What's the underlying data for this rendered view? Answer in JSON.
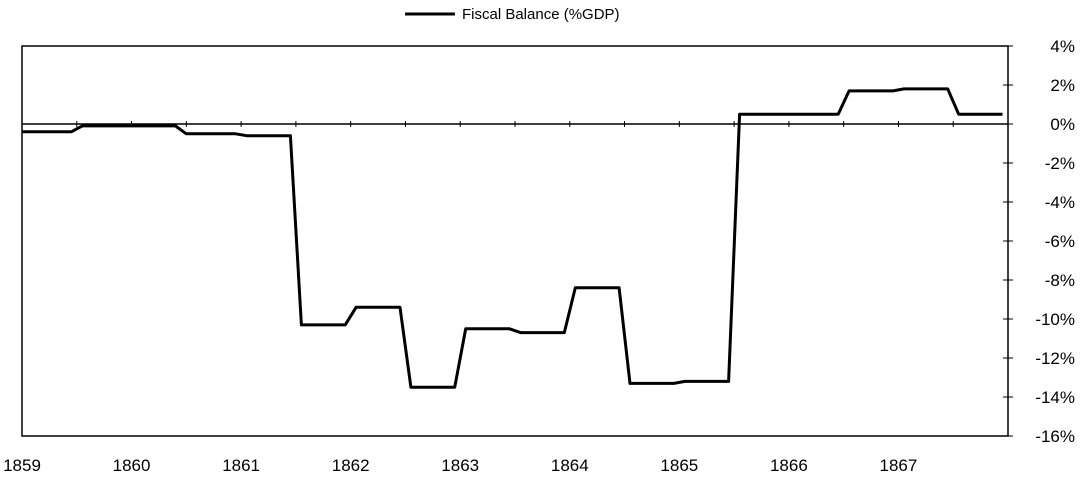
{
  "chart_data": {
    "type": "line",
    "title": "",
    "xlabel": "",
    "ylabel": "",
    "legend": {
      "position": "top-center",
      "entries": [
        "Fiscal Balance (%GDP)"
      ]
    },
    "grid": false,
    "xlim": [
      1859,
      1868
    ],
    "ylim": [
      -16,
      4
    ],
    "x_ticks": [
      1859,
      1860,
      1861,
      1862,
      1863,
      1864,
      1865,
      1866,
      1867
    ],
    "x_tick_labels": [
      "1859",
      "1860",
      "1861",
      "1862",
      "1863",
      "1864",
      "1865",
      "1866",
      "1867"
    ],
    "y_ticks": [
      4,
      2,
      0,
      -2,
      -4,
      -6,
      -8,
      -10,
      -12,
      -14,
      -16
    ],
    "y_tick_labels": [
      "4%",
      "2%",
      "0%",
      "-2%",
      "-4%",
      "-6%",
      "-8%",
      "-10%",
      "-12%",
      "-14%",
      "-16%"
    ],
    "y_axis_side": "right",
    "series": [
      {
        "name": "Fiscal Balance (%GDP)",
        "color": "#000000",
        "x": [
          1859.0,
          1859.45,
          1859.55,
          1860.0,
          1860.4,
          1860.5,
          1860.95,
          1861.05,
          1861.45,
          1861.55,
          1861.95,
          1862.05,
          1862.45,
          1862.55,
          1862.95,
          1863.05,
          1863.45,
          1863.55,
          1863.95,
          1864.05,
          1864.45,
          1864.55,
          1864.95,
          1865.05,
          1865.45,
          1865.55,
          1865.95,
          1866.05,
          1866.45,
          1866.55,
          1866.95,
          1867.05,
          1867.45,
          1867.55,
          1867.95
        ],
        "values": [
          -0.4,
          -0.4,
          -0.1,
          -0.1,
          -0.1,
          -0.5,
          -0.5,
          -0.6,
          -0.6,
          -10.3,
          -10.3,
          -9.4,
          -9.4,
          -13.5,
          -13.5,
          -10.5,
          -10.5,
          -10.7,
          -10.7,
          -8.4,
          -8.4,
          -13.3,
          -13.3,
          -13.2,
          -13.2,
          0.5,
          0.5,
          0.5,
          0.5,
          1.7,
          1.7,
          1.8,
          1.8,
          0.5,
          0.5
        ]
      }
    ]
  }
}
